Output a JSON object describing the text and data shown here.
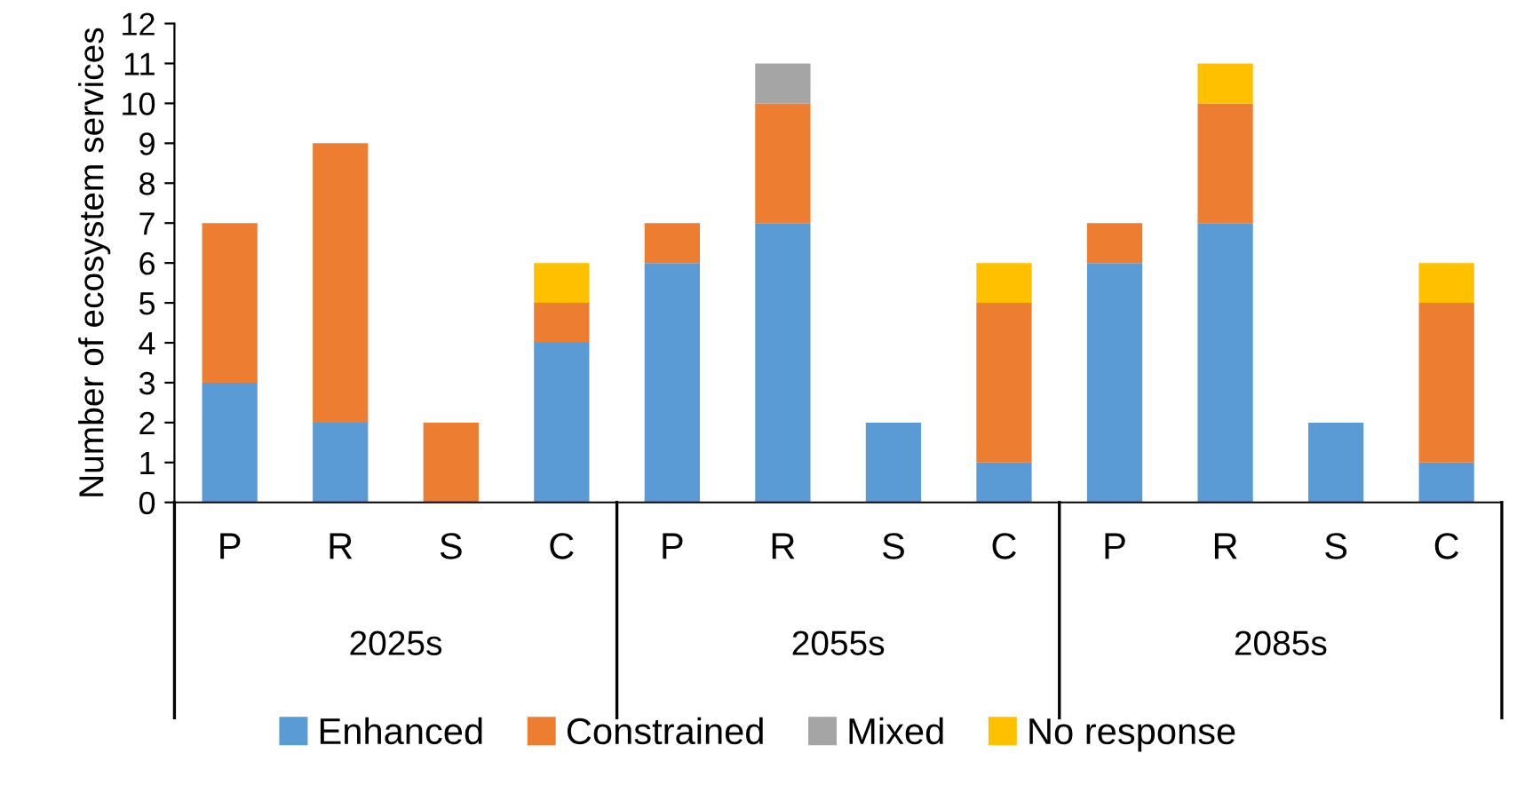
{
  "chart_data": {
    "type": "bar",
    "stacked": true,
    "ylabel": "Number of ecosystem services",
    "categories": [
      "P",
      "R",
      "S",
      "C",
      "P",
      "R",
      "S",
      "C",
      "P",
      "R",
      "S",
      "C"
    ],
    "series": [
      {
        "name": "Enhanced",
        "color": "#5b9bd5",
        "values": [
          3,
          2,
          0,
          4,
          6,
          7,
          2,
          1,
          6,
          7,
          2,
          1
        ]
      },
      {
        "name": "Constrained",
        "color": "#ed7d31",
        "values": [
          4,
          7,
          2,
          1,
          1,
          3,
          0,
          4,
          1,
          3,
          0,
          4
        ]
      },
      {
        "name": "Mixed",
        "color": "#a5a5a5",
        "values": [
          0,
          0,
          0,
          0,
          0,
          1,
          0,
          0,
          0,
          0,
          0,
          0
        ]
      },
      {
        "name": "No response",
        "color": "#ffc000",
        "values": [
          0,
          0,
          0,
          1,
          0,
          0,
          0,
          1,
          0,
          1,
          0,
          1
        ]
      }
    ],
    "annotations": [
      "2025s",
      "2055s",
      "2085s"
    ],
    "ylim": [
      0,
      12
    ],
    "yticks": [
      0,
      1,
      2,
      3,
      4,
      5,
      6,
      7,
      8,
      9,
      10,
      11,
      12
    ],
    "grid": false,
    "legend": "bottom"
  }
}
